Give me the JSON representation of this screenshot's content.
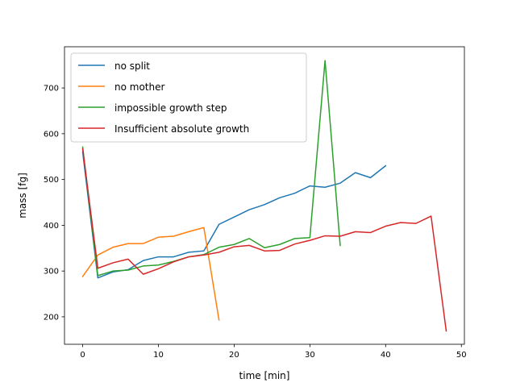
{
  "chart_data": {
    "type": "line",
    "title": "",
    "xlabel": "time [min]",
    "ylabel": "mass [fg]",
    "xlim": [
      -2.4,
      50.4
    ],
    "ylim": [
      140,
      790
    ],
    "xticks": [
      0,
      10,
      20,
      30,
      40,
      50
    ],
    "yticks": [
      200,
      300,
      400,
      500,
      600,
      700
    ],
    "grid": false,
    "legend_position": "top-left",
    "series": [
      {
        "name": "no split",
        "color": "#1f77b4",
        "x": [
          0,
          2,
          4,
          6,
          8,
          10,
          12,
          14,
          16,
          18,
          20,
          22,
          24,
          26,
          28,
          30,
          32,
          34,
          36,
          38,
          40
        ],
        "y": [
          560,
          285,
          298,
          303,
          323,
          331,
          331,
          341,
          344,
          402,
          418,
          434,
          445,
          460,
          470,
          486,
          483,
          492,
          515,
          504,
          530
        ]
      },
      {
        "name": "no mother",
        "color": "#ff7f0e",
        "x": [
          0,
          2,
          4,
          6,
          8,
          10,
          12,
          14,
          16,
          18
        ],
        "y": [
          288,
          335,
          352,
          360,
          360,
          374,
          376,
          386,
          395,
          193
        ]
      },
      {
        "name": "impossible growth step",
        "color": "#2ca02c",
        "x": [
          0,
          2,
          4,
          6,
          8,
          10,
          12,
          14,
          16,
          18,
          20,
          22,
          24,
          26,
          28,
          30,
          32,
          34
        ],
        "y": [
          571,
          290,
          300,
          302,
          311,
          313,
          321,
          331,
          336,
          352,
          358,
          371,
          351,
          358,
          371,
          373,
          760,
          356
        ]
      },
      {
        "name": "Insufficient absolute growth",
        "color": "#d62728",
        "x": [
          0,
          2,
          4,
          6,
          8,
          10,
          12,
          14,
          16,
          18,
          20,
          22,
          24,
          26,
          28,
          30,
          32,
          34,
          36,
          38,
          40,
          42,
          44,
          46,
          48
        ],
        "y": [
          567,
          306,
          318,
          326,
          293,
          305,
          320,
          331,
          335,
          341,
          353,
          356,
          344,
          345,
          359,
          367,
          377,
          376,
          386,
          384,
          398,
          406,
          404,
          420,
          169
        ]
      }
    ]
  }
}
